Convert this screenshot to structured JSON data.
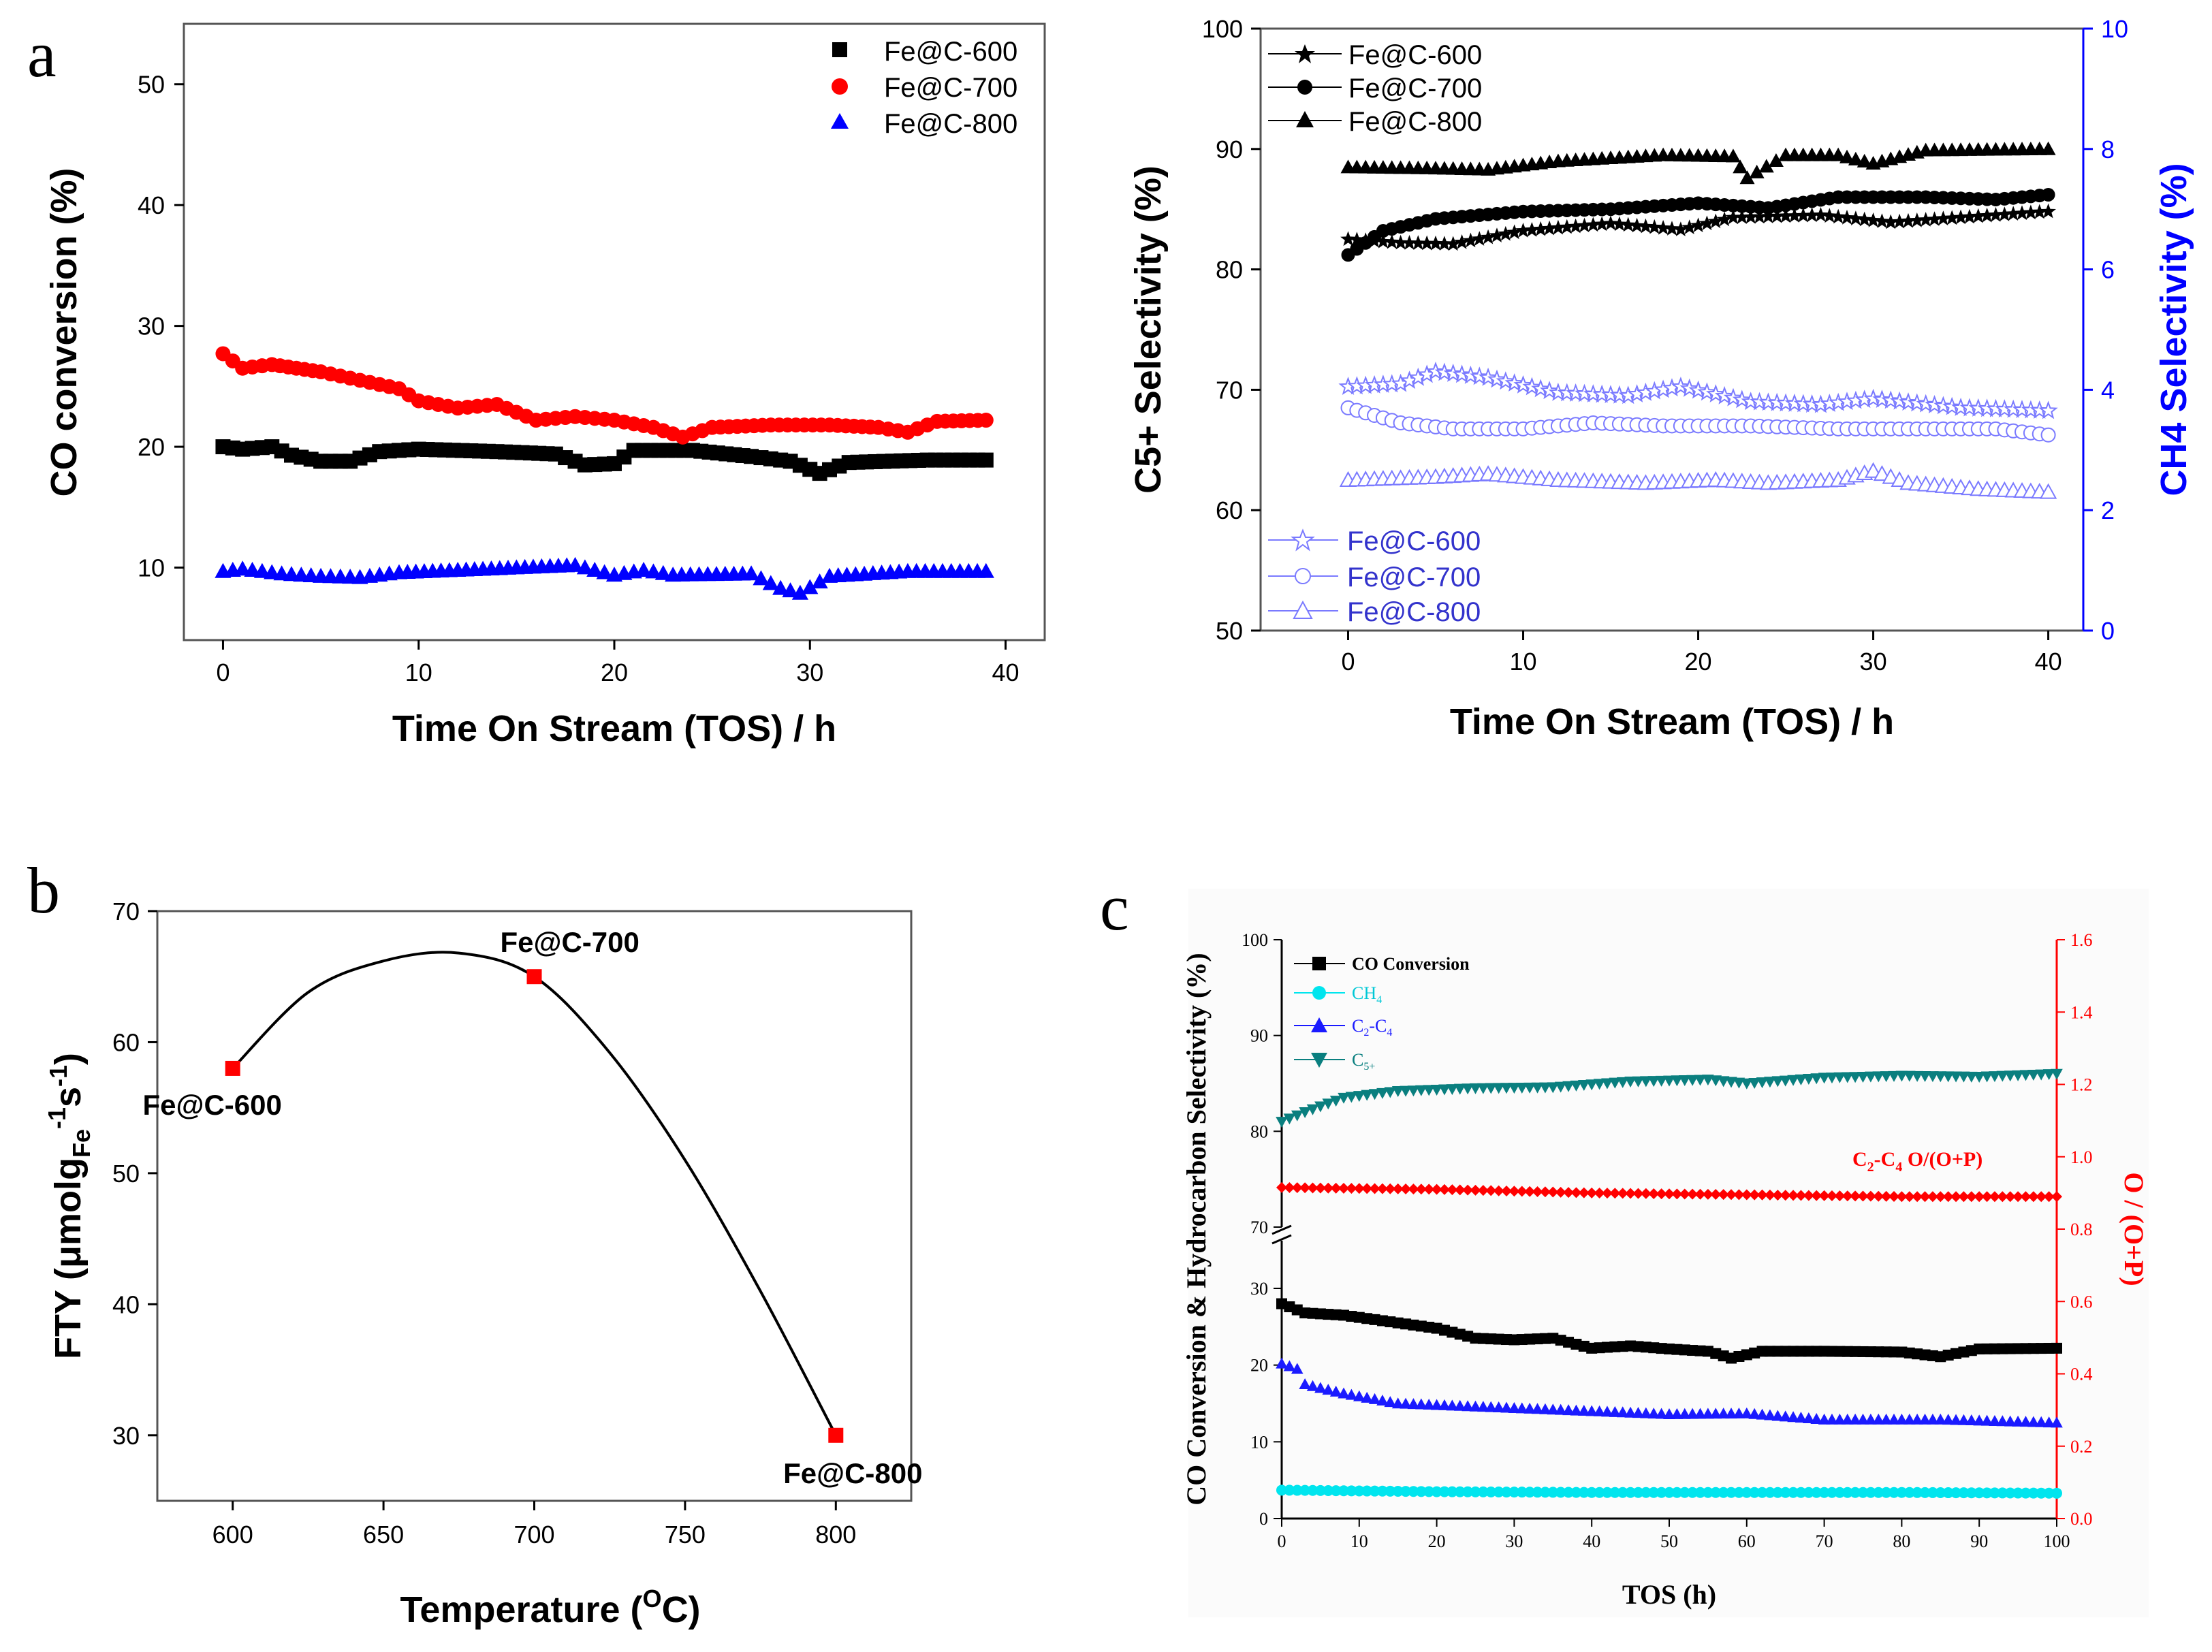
{
  "colors": {
    "black": "#000000",
    "red": "#ff0000",
    "blue": "#0000ff",
    "lightblue": "#7a7aff",
    "cyan": "#00e5ee",
    "teal": "#0a7f7f",
    "c2c4": "#1a1aff",
    "paneBg": "#fbfbfb"
  },
  "chart_data": [
    {
      "id": "a_left",
      "panel_label": "a",
      "type": "scatter",
      "xlabel": "Time On Stream (TOS) / h",
      "ylabel": "CO conversion (%)",
      "xlim": [
        -2,
        42
      ],
      "ylim": [
        4,
        55
      ],
      "xticks": [
        0,
        10,
        20,
        30,
        40
      ],
      "yticks": [
        10,
        20,
        30,
        40,
        50
      ],
      "legend_position": "top-right",
      "series": [
        {
          "name": "Fe@C-600",
          "color": "#000000",
          "marker": "square",
          "points": [
            [
              0,
              20
            ],
            [
              1,
              19.8
            ],
            [
              2.5,
              20
            ],
            [
              3.5,
              19.3
            ],
            [
              5,
              18.8
            ],
            [
              6.5,
              18.8
            ],
            [
              8,
              19.6
            ],
            [
              10,
              19.8
            ],
            [
              14,
              19.6
            ],
            [
              17,
              19.4
            ],
            [
              18.5,
              18.5
            ],
            [
              20,
              18.6
            ],
            [
              21,
              19.7
            ],
            [
              24,
              19.7
            ],
            [
              27,
              19.2
            ],
            [
              29,
              18.8
            ],
            [
              30.5,
              17.8
            ],
            [
              32,
              18.7
            ],
            [
              36,
              18.9
            ],
            [
              39,
              18.9
            ]
          ]
        },
        {
          "name": "Fe@C-700",
          "color": "#ff0000",
          "marker": "circle",
          "points": [
            [
              0,
              27.7
            ],
            [
              1,
              26.5
            ],
            [
              2.5,
              26.8
            ],
            [
              5,
              26.2
            ],
            [
              7,
              25.5
            ],
            [
              9,
              24.8
            ],
            [
              10,
              23.8
            ],
            [
              12,
              23.2
            ],
            [
              14,
              23.5
            ],
            [
              16,
              22.2
            ],
            [
              18,
              22.5
            ],
            [
              20,
              22.2
            ],
            [
              22,
              21.6
            ],
            [
              23.5,
              20.8
            ],
            [
              25,
              21.6
            ],
            [
              28,
              21.8
            ],
            [
              31,
              21.8
            ],
            [
              33.5,
              21.6
            ],
            [
              35,
              21.2
            ],
            [
              36.5,
              22.1
            ],
            [
              39,
              22.2
            ]
          ]
        },
        {
          "name": "Fe@C-800",
          "color": "#0000ff",
          "marker": "triangle",
          "points": [
            [
              0,
              9.7
            ],
            [
              1,
              9.9
            ],
            [
              3,
              9.5
            ],
            [
              5,
              9.3
            ],
            [
              7,
              9.2
            ],
            [
              9,
              9.6
            ],
            [
              12,
              9.8
            ],
            [
              15,
              10
            ],
            [
              18,
              10.2
            ],
            [
              20,
              9.4
            ],
            [
              21.5,
              9.8
            ],
            [
              23,
              9.4
            ],
            [
              27,
              9.5
            ],
            [
              28.5,
              8.3
            ],
            [
              29.5,
              7.9
            ],
            [
              31,
              9.3
            ],
            [
              35,
              9.7
            ],
            [
              39,
              9.7
            ]
          ]
        }
      ]
    },
    {
      "id": "a_right",
      "type": "scatter",
      "xlabel": "Time On Stream (TOS) / h",
      "ylabel": "C5+ Selectivity (%)",
      "ylabel_right": "CH4 Selectivity (%)",
      "xlim": [
        -5,
        42
      ],
      "ylim": [
        50,
        100
      ],
      "y2lim": [
        0,
        10
      ],
      "xticks": [
        0,
        10,
        20,
        30,
        40
      ],
      "yticks": [
        50,
        60,
        70,
        80,
        90,
        100
      ],
      "y2ticks": [
        0,
        2,
        4,
        6,
        8,
        10
      ],
      "legend_top": [
        "Fe@C-600",
        "Fe@C-700",
        "Fe@C-800"
      ],
      "legend_bottom": [
        "Fe@C-600",
        "Fe@C-700",
        "Fe@C-800"
      ],
      "series": [
        {
          "name": "Fe@C-600",
          "axis": "left",
          "color": "#000000",
          "marker": "star",
          "filled": true,
          "points": [
            [
              0,
              82.5
            ],
            [
              3,
              82.2
            ],
            [
              6,
              82.1
            ],
            [
              10,
              83.2
            ],
            [
              15,
              83.8
            ],
            [
              19,
              83.3
            ],
            [
              22,
              84.3
            ],
            [
              27,
              84.5
            ],
            [
              31,
              83.9
            ],
            [
              35,
              84.3
            ],
            [
              40,
              84.8
            ]
          ]
        },
        {
          "name": "Fe@C-700",
          "axis": "left",
          "color": "#000000",
          "marker": "circle",
          "filled": true,
          "points": [
            [
              0,
              81.2
            ],
            [
              2,
              83.2
            ],
            [
              5,
              84.2
            ],
            [
              10,
              84.8
            ],
            [
              15,
              85
            ],
            [
              20,
              85.5
            ],
            [
              24,
              85.1
            ],
            [
              28,
              86
            ],
            [
              33,
              86
            ],
            [
              37,
              85.8
            ],
            [
              40,
              86.2
            ]
          ]
        },
        {
          "name": "Fe@C-800",
          "axis": "left",
          "color": "#000000",
          "marker": "triangle",
          "filled": true,
          "points": [
            [
              0,
              88.5
            ],
            [
              5,
              88.4
            ],
            [
              8,
              88.3
            ],
            [
              12,
              89
            ],
            [
              18,
              89.5
            ],
            [
              22,
              89.4
            ],
            [
              22.8,
              87.6
            ],
            [
              25,
              89.5
            ],
            [
              28,
              89.5
            ],
            [
              30,
              88.8
            ],
            [
              33,
              89.9
            ],
            [
              40,
              90
            ]
          ]
        },
        {
          "name": "Fe@C-600",
          "axis": "right",
          "color": "#7a7aff",
          "marker": "star",
          "filled": false,
          "points": [
            [
              0,
              4.05
            ],
            [
              3,
              4.1
            ],
            [
              5,
              4.3
            ],
            [
              8,
              4.2
            ],
            [
              12,
              3.95
            ],
            [
              16,
              3.9
            ],
            [
              19,
              4.05
            ],
            [
              23,
              3.8
            ],
            [
              27,
              3.75
            ],
            [
              30,
              3.85
            ],
            [
              35,
              3.7
            ],
            [
              40,
              3.65
            ]
          ]
        },
        {
          "name": "Fe@C-700",
          "axis": "right",
          "color": "#7a7aff",
          "marker": "circle",
          "filled": false,
          "points": [
            [
              0,
              3.7
            ],
            [
              3,
              3.45
            ],
            [
              6,
              3.35
            ],
            [
              10,
              3.35
            ],
            [
              14,
              3.45
            ],
            [
              18,
              3.4
            ],
            [
              23,
              3.4
            ],
            [
              28,
              3.35
            ],
            [
              33,
              3.35
            ],
            [
              37,
              3.35
            ],
            [
              40,
              3.25
            ]
          ]
        },
        {
          "name": "Fe@C-800",
          "axis": "right",
          "color": "#7a7aff",
          "marker": "triangle",
          "filled": false,
          "points": [
            [
              0,
              2.5
            ],
            [
              5,
              2.55
            ],
            [
              8,
              2.6
            ],
            [
              12,
              2.5
            ],
            [
              17,
              2.45
            ],
            [
              21,
              2.5
            ],
            [
              24,
              2.45
            ],
            [
              28,
              2.5
            ],
            [
              30,
              2.65
            ],
            [
              32,
              2.45
            ],
            [
              36,
              2.35
            ],
            [
              40,
              2.3
            ]
          ]
        }
      ]
    },
    {
      "id": "b",
      "panel_label": "b",
      "type": "scatter",
      "xlabel": "Temperature (OC)",
      "ylabel": "FTY (μmolgFe-1s-1)",
      "xlim": [
        575,
        825
      ],
      "ylim": [
        25,
        70
      ],
      "xticks": [
        600,
        650,
        700,
        750,
        800
      ],
      "yticks": [
        30,
        40,
        50,
        60,
        70
      ],
      "points": [
        {
          "x": 600,
          "y": 58,
          "label": "Fe@C-600"
        },
        {
          "x": 700,
          "y": 65,
          "label": "Fe@C-700"
        },
        {
          "x": 800,
          "y": 30,
          "label": "Fe@C-800"
        }
      ],
      "fit_curve": [
        [
          600,
          58
        ],
        [
          625,
          63.8
        ],
        [
          650,
          66.2
        ],
        [
          675,
          66.8
        ],
        [
          700,
          65
        ],
        [
          725,
          59.2
        ],
        [
          750,
          51
        ],
        [
          775,
          41
        ],
        [
          800,
          30
        ]
      ]
    },
    {
      "id": "c",
      "panel_label": "c",
      "type": "scatter",
      "xlabel": "TOS (h)",
      "ylabel": "CO Conversion & Hydrocarbon Selectivity (%)",
      "ylabel_right": "O / (O+P)",
      "xlim": [
        0,
        100
      ],
      "yticks_lower": [
        0,
        10,
        20,
        30
      ],
      "yticks_upper": [
        70,
        80,
        90,
        100
      ],
      "y2lim": [
        0,
        1.6
      ],
      "y2ticks": [
        0.0,
        0.2,
        0.4,
        0.6,
        0.8,
        1.0,
        1.2,
        1.4,
        1.6
      ],
      "xticks": [
        0,
        10,
        20,
        30,
        40,
        50,
        60,
        70,
        80,
        90,
        100
      ],
      "annotation": "C2-C4 O/(O+P)",
      "series": [
        {
          "name": "CO Conversion",
          "color": "#000000",
          "marker": "square",
          "points": [
            [
              0,
              28
            ],
            [
              3,
              26.8
            ],
            [
              8,
              26.5
            ],
            [
              15,
              25.5
            ],
            [
              20,
              24.8
            ],
            [
              25,
              23.5
            ],
            [
              30,
              23.3
            ],
            [
              35,
              23.5
            ],
            [
              40,
              22.2
            ],
            [
              45,
              22.5
            ],
            [
              50,
              22.1
            ],
            [
              55,
              21.8
            ],
            [
              58,
              20.9
            ],
            [
              62,
              21.8
            ],
            [
              70,
              21.8
            ],
            [
              80,
              21.7
            ],
            [
              85,
              21.1
            ],
            [
              90,
              22.1
            ],
            [
              100,
              22.2
            ]
          ]
        },
        {
          "name": "CH4",
          "color": "#00e5ee",
          "marker": "circle",
          "points": [
            [
              0,
              3.7
            ],
            [
              20,
              3.5
            ],
            [
              40,
              3.4
            ],
            [
              60,
              3.4
            ],
            [
              80,
              3.4
            ],
            [
              100,
              3.3
            ]
          ]
        },
        {
          "name": "C2-C4",
          "color": "#1a1aff",
          "marker": "triangle",
          "points": [
            [
              0,
              20.2
            ],
            [
              2,
              19.5
            ],
            [
              3,
              17.5
            ],
            [
              8,
              16.3
            ],
            [
              15,
              15
            ],
            [
              25,
              14.6
            ],
            [
              40,
              14
            ],
            [
              50,
              13.6
            ],
            [
              60,
              13.7
            ],
            [
              70,
              12.9
            ],
            [
              85,
              12.9
            ],
            [
              100,
              12.5
            ]
          ]
        },
        {
          "name": "C5+",
          "color": "#0a7f7f",
          "marker": "triangle-down",
          "points": [
            [
              0,
              81
            ],
            [
              3,
              82
            ],
            [
              8,
              83.5
            ],
            [
              15,
              84.2
            ],
            [
              25,
              84.5
            ],
            [
              35,
              84.6
            ],
            [
              45,
              85.2
            ],
            [
              55,
              85.4
            ],
            [
              60,
              85
            ],
            [
              70,
              85.6
            ],
            [
              80,
              85.8
            ],
            [
              90,
              85.7
            ],
            [
              100,
              86
            ]
          ]
        },
        {
          "name": "C2-C4 O/(O+P)",
          "axis": "right",
          "color": "#ff0000",
          "marker": "diamond",
          "points": [
            [
              0,
              0.915
            ],
            [
              20,
              0.91
            ],
            [
              40,
              0.9
            ],
            [
              60,
              0.895
            ],
            [
              80,
              0.89
            ],
            [
              100,
              0.89
            ]
          ]
        }
      ]
    }
  ]
}
